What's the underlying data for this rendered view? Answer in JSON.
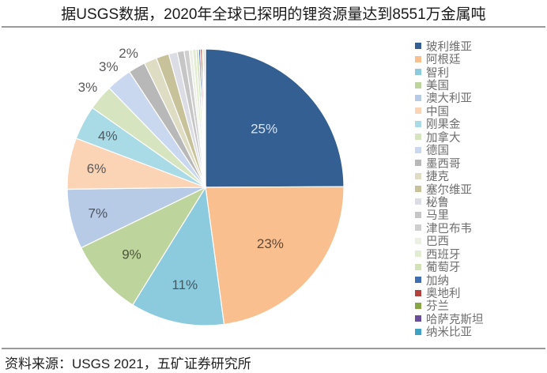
{
  "title": "据USGS数据，2020年全球已探明的锂资源量达到8551万金属吨",
  "source": "资料来源：USGS 2021，五矿证券研究所",
  "chart_data": {
    "type": "pie",
    "title": "据USGS数据，2020年全球已探明的锂资源量达到8551万金属吨",
    "start_angle": "12 o'clock, clockwise",
    "legend_position": "right",
    "categories": [
      "玻利维亚",
      "阿根廷",
      "智利",
      "美国",
      "澳大利亚",
      "中国",
      "刚果金",
      "加拿大",
      "德国",
      "墨西哥",
      "捷克",
      "塞尔维亚",
      "秘鲁",
      "马里",
      "津巴布韦",
      "巴西",
      "西班牙",
      "葡萄牙",
      "加纳",
      "奥地利",
      "芬兰",
      "哈萨克斯坦",
      "纳米比亚"
    ],
    "values": [
      25,
      23,
      11,
      9,
      7,
      6,
      4,
      3,
      3,
      2,
      1.5,
      1.5,
      1.0,
      0.8,
      0.6,
      0.4,
      0.4,
      0.3,
      0.2,
      0.2,
      0.15,
      0.15,
      0.1
    ],
    "data_labels": [
      "25%",
      "23%",
      "11%",
      "9%",
      "7%",
      "6%",
      "4%",
      "3%",
      "3%",
      "2%",
      "",
      "",
      "",
      "",
      "",
      "",
      "",
      "",
      "",
      "",
      "",
      "",
      ""
    ],
    "colors": [
      "#335f92",
      "#f9bf8f",
      "#8ccadd",
      "#bdd59c",
      "#b7cbe6",
      "#fbd3b5",
      "#a9dbe6",
      "#d6e5c0",
      "#c9d8ee",
      "#b8b8b8",
      "#dfdcc4",
      "#c8c29a",
      "#dcdde4",
      "#c6c6c6",
      "#cfcfcf",
      "#ecf0e4",
      "#e1ecd0",
      "#d2e2b6",
      "#3f6db3",
      "#b5413d",
      "#86a645",
      "#6b4c9a",
      "#3ea2c2"
    ],
    "label_colors": [
      "#dbe3ee",
      "#5e4838",
      "#3f5b66",
      "#4b5738",
      "#4a5363",
      "#5a5a5a",
      "#4a5a62",
      "#5a5a5a",
      "#5a5a5a",
      "#5a5a5a"
    ]
  }
}
